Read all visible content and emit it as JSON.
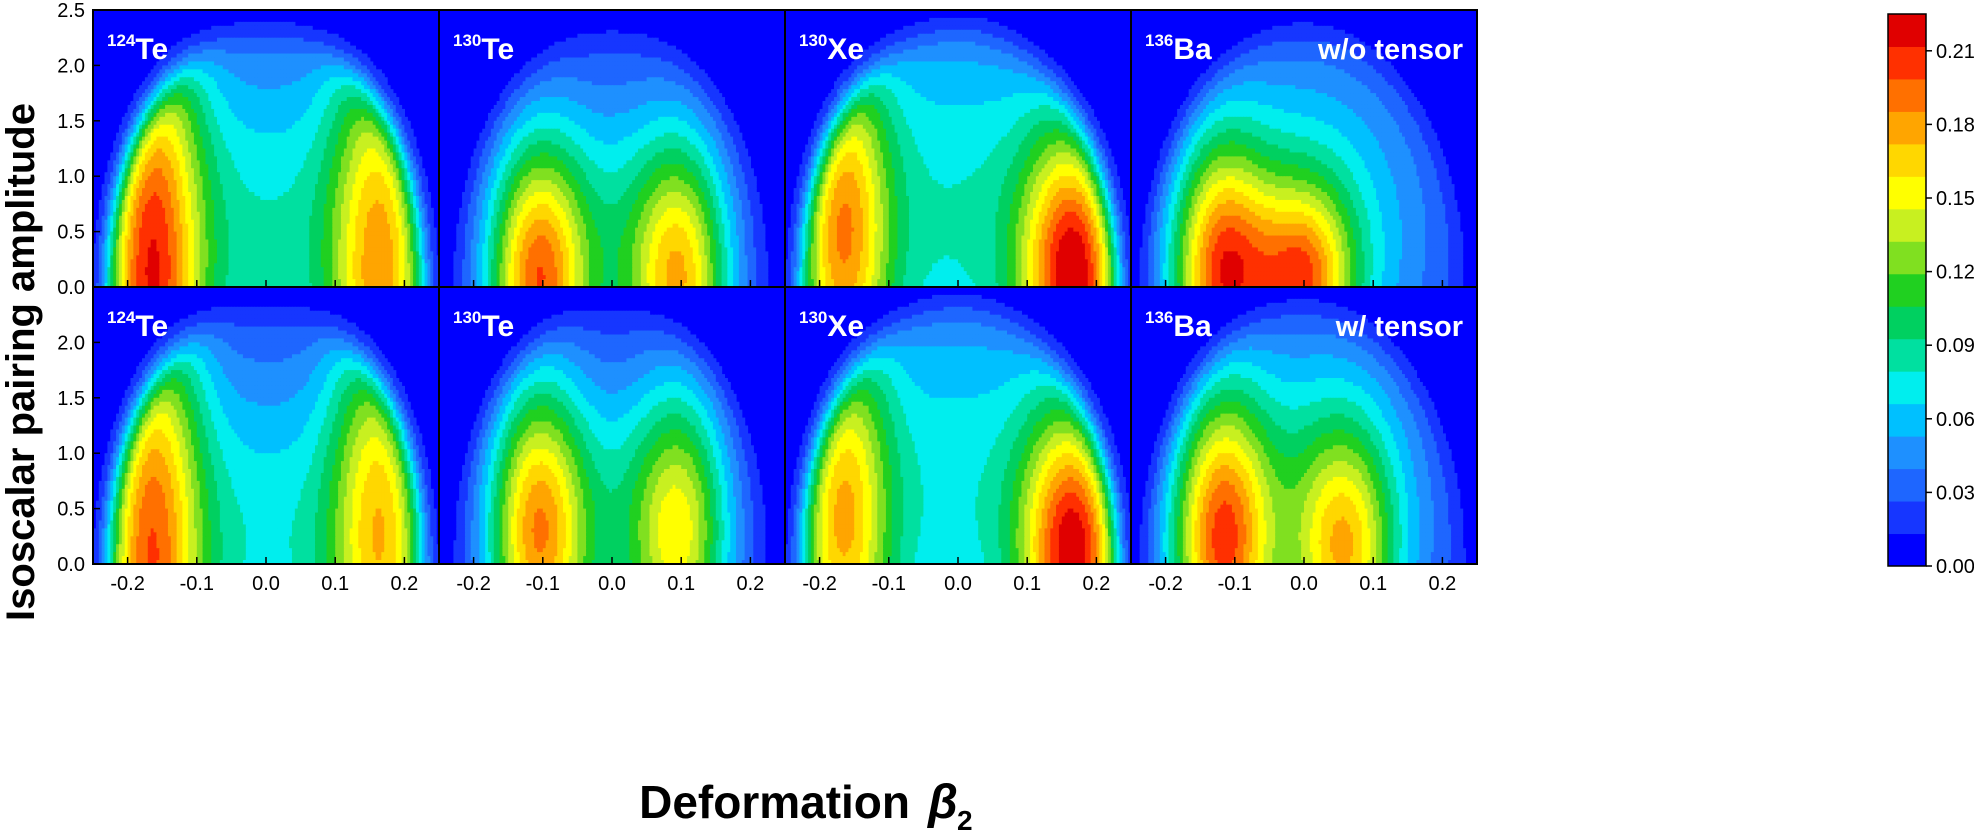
{
  "chart_data": {
    "type": "heatmap",
    "title": "",
    "xlabel": "Deformation",
    "xlabel_symbol": "β",
    "xlabel_subscript": "2",
    "ylabel": "Isoscalar pairing amplitude",
    "xlim": [
      -0.25,
      0.25
    ],
    "ylim": [
      0.0,
      2.5
    ],
    "x_ticks": [
      "-0.2",
      "-0.1",
      "0.0",
      "0.1",
      "0.2"
    ],
    "x_tick_values": [
      -0.2,
      -0.1,
      0.0,
      0.1,
      0.2
    ],
    "y_ticks": [
      "0.0",
      "0.5",
      "1.0",
      "1.5",
      "2.0",
      "2.5"
    ],
    "y_tick_values": [
      0.0,
      0.5,
      1.0,
      1.5,
      2.0,
      2.5
    ],
    "y_ticks_lower": [
      "0.0",
      "0.5",
      "1.0",
      "1.5",
      "2.0"
    ],
    "colorbar": {
      "min": 0.0,
      "max": 0.225,
      "levels": 0.015,
      "ticks": [
        "0.00",
        "0.03",
        "0.06",
        "0.09",
        "0.12",
        "0.15",
        "0.18",
        "0.21"
      ],
      "tick_values": [
        0.0,
        0.03,
        0.06,
        0.09,
        0.12,
        0.15,
        0.18,
        0.21
      ],
      "colors": [
        "#0000ff",
        "#1636ff",
        "#1e66ff",
        "#1e90ff",
        "#00c0ff",
        "#00eeee",
        "#00e0a0",
        "#00d060",
        "#20d020",
        "#80e020",
        "#c8f020",
        "#ffff00",
        "#ffd700",
        "#ffa500",
        "#ff7000",
        "#ff3000",
        "#e00000"
      ]
    },
    "rows": [
      {
        "label": "w/o tensor",
        "panels": [
          {
            "mass": "124",
            "element": "Te",
            "blobs": [
              {
                "x": -0.17,
                "y": 0.05,
                "sx": 0.055,
                "sy": 2.0,
                "a": 0.2
              },
              {
                "x": 0.17,
                "y": 0.05,
                "sx": 0.055,
                "sy": 1.9,
                "a": 0.165
              },
              {
                "x": 0.0,
                "y": 0.4,
                "sx": 0.14,
                "sy": 1.5,
                "a": 0.09
              }
            ]
          },
          {
            "mass": "130",
            "element": "Te",
            "blobs": [
              {
                "x": -0.11,
                "y": 0.05,
                "sx": 0.05,
                "sy": 0.9,
                "a": 0.17
              },
              {
                "x": 0.1,
                "y": 0.05,
                "sx": 0.05,
                "sy": 0.9,
                "a": 0.14
              },
              {
                "x": 0.0,
                "y": 0.3,
                "sx": 0.12,
                "sy": 1.25,
                "a": 0.085
              }
            ]
          },
          {
            "mass": "130",
            "element": "Xe",
            "blobs": [
              {
                "x": -0.17,
                "y": 0.5,
                "sx": 0.05,
                "sy": 1.3,
                "a": 0.16
              },
              {
                "x": 0.17,
                "y": 0.1,
                "sx": 0.055,
                "sy": 0.95,
                "a": 0.205
              },
              {
                "x": 0.0,
                "y": 0.6,
                "sx": 0.17,
                "sy": 1.7,
                "a": 0.09
              }
            ]
          },
          {
            "mass": "136",
            "element": "Ba",
            "blobs": [
              {
                "x": -0.12,
                "y": 0.1,
                "sx": 0.05,
                "sy": 0.85,
                "a": 0.17
              },
              {
                "x": 0.0,
                "y": 0.05,
                "sx": 0.05,
                "sy": 0.6,
                "a": 0.14
              },
              {
                "x": 0.0,
                "y": 0.5,
                "sx": 0.15,
                "sy": 1.35,
                "a": 0.09
              }
            ]
          }
        ]
      },
      {
        "label": "w/ tensor",
        "panels": [
          {
            "mass": "124",
            "element": "Te",
            "blobs": [
              {
                "x": -0.17,
                "y": 0.05,
                "sx": 0.055,
                "sy": 2.0,
                "a": 0.19
              },
              {
                "x": 0.17,
                "y": 0.3,
                "sx": 0.055,
                "sy": 1.7,
                "a": 0.16
              },
              {
                "x": 0.0,
                "y": 0.2,
                "sx": 0.13,
                "sy": 1.4,
                "a": 0.085
              }
            ]
          },
          {
            "mass": "130",
            "element": "Te",
            "blobs": [
              {
                "x": -0.11,
                "y": 0.3,
                "sx": 0.05,
                "sy": 1.0,
                "a": 0.16
              },
              {
                "x": 0.1,
                "y": 0.3,
                "sx": 0.05,
                "sy": 0.95,
                "a": 0.12
              },
              {
                "x": 0.0,
                "y": 0.3,
                "sx": 0.12,
                "sy": 1.2,
                "a": 0.08
              }
            ]
          },
          {
            "mass": "130",
            "element": "Xe",
            "blobs": [
              {
                "x": -0.17,
                "y": 0.4,
                "sx": 0.05,
                "sy": 1.3,
                "a": 0.15
              },
              {
                "x": 0.17,
                "y": 0.1,
                "sx": 0.055,
                "sy": 0.95,
                "a": 0.205
              },
              {
                "x": 0.0,
                "y": 0.6,
                "sx": 0.17,
                "sy": 1.7,
                "a": 0.085
              }
            ]
          },
          {
            "mass": "136",
            "element": "Ba",
            "blobs": [
              {
                "x": -0.12,
                "y": 0.2,
                "sx": 0.05,
                "sy": 0.95,
                "a": 0.17
              },
              {
                "x": 0.06,
                "y": 0.1,
                "sx": 0.05,
                "sy": 0.8,
                "a": 0.12
              },
              {
                "x": 0.0,
                "y": 0.5,
                "sx": 0.15,
                "sy": 1.35,
                "a": 0.09
              }
            ]
          }
        ]
      }
    ]
  }
}
